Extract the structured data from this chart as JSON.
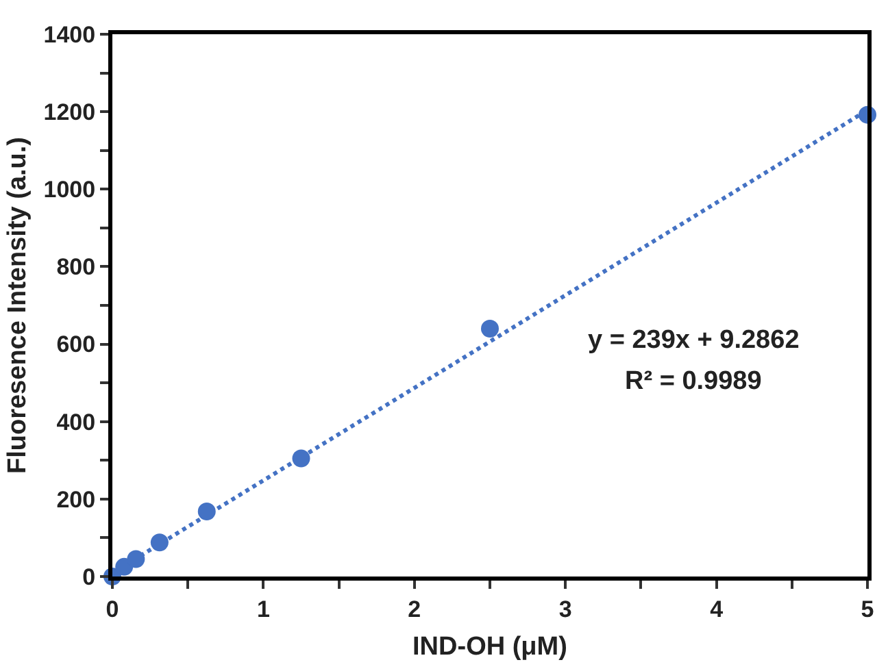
{
  "chart_data": {
    "type": "scatter",
    "xlabel": "IND-OH (μM)",
    "ylabel": "Fluoresence Intensity (a.u.)",
    "annotations": [
      "y = 239x + 9.2862",
      "R² = 0.9989"
    ],
    "series": [
      {
        "color": "#4472c4",
        "marker": "circle",
        "x": [
          0,
          0.078,
          0.156,
          0.3125,
          0.625,
          1.25,
          2.5,
          5
        ],
        "values": [
          0,
          25,
          45,
          88,
          168,
          305,
          640,
          1192
        ]
      },
      {
        "type": "line",
        "color": "#4472c4",
        "line_style": "dotted",
        "x": [
          0,
          5
        ],
        "values": [
          9,
          1204
        ]
      }
    ],
    "xlim": [
      0,
      5
    ],
    "ylim": [
      0,
      1400
    ],
    "xticks": [
      0,
      {
        "value": 0.5,
        "label": null
      },
      1,
      {
        "value": 1.5,
        "label": null
      },
      2,
      {
        "value": 2.5,
        "label": null
      },
      3,
      {
        "value": 3.5,
        "label": null
      },
      4,
      {
        "value": 4.5,
        "label": null
      },
      5
    ],
    "yticks": [
      0,
      {
        "value": 100,
        "label": null
      },
      200,
      {
        "value": 300,
        "label": null
      },
      400,
      {
        "value": 500,
        "label": null
      },
      600,
      {
        "value": 700,
        "label": null
      },
      800,
      {
        "value": 900,
        "label": null
      },
      1000,
      {
        "value": 1100,
        "label": null
      },
      1200,
      {
        "value": 1300,
        "label": null
      },
      1400
    ]
  }
}
